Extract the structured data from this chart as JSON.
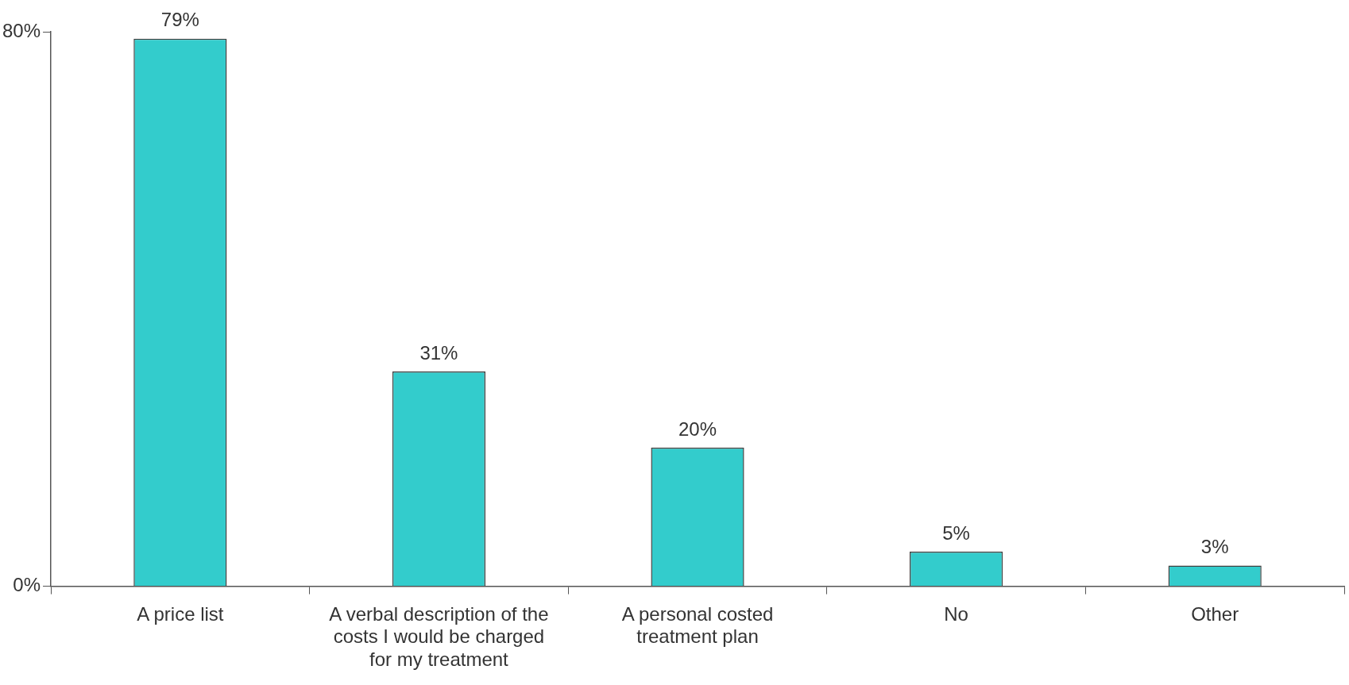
{
  "chart_data": {
    "type": "bar",
    "categories": [
      "A price list",
      "A verbal description of the costs I would be charged for my treatment",
      "A personal costed treatment plan",
      "No",
      "Other"
    ],
    "values": [
      79,
      31,
      20,
      5,
      3
    ],
    "value_labels": [
      "79%",
      "31%",
      "20%",
      "5%",
      "3%"
    ],
    "color": "#33cccc",
    "ylim": [
      0,
      80
    ],
    "yticks": [
      {
        "value": 0,
        "label": "0%"
      },
      {
        "value": 80,
        "label": "80%"
      }
    ],
    "grid": false,
    "legend": false
  }
}
